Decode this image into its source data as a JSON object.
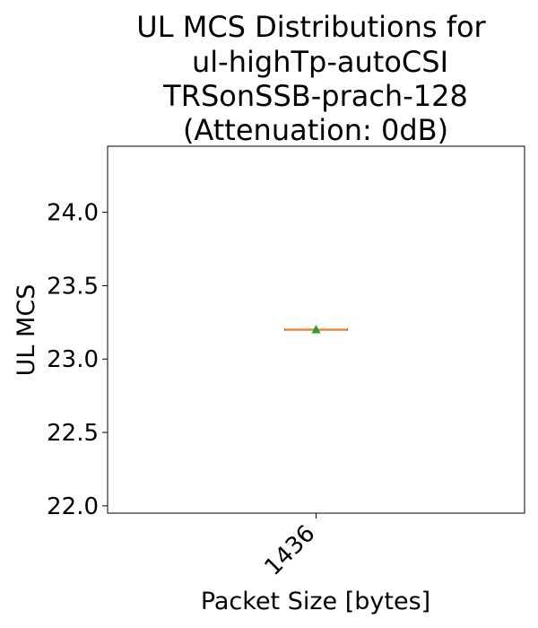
{
  "chart_data": {
    "type": "box",
    "title_lines": [
      "UL MCS Distributions for",
      "ul-highTp-autoCSI",
      "TRSonSSB-prach-128",
      "(Attenuation: 0dB)"
    ],
    "xlabel": "Packet Size [bytes]",
    "ylabel": "UL MCS",
    "categories": [
      "1436"
    ],
    "yticks": [
      "22.0",
      "22.5",
      "23.0",
      "23.5",
      "24.0"
    ],
    "ylim": [
      21.95,
      24.45
    ],
    "boxes": [
      {
        "category": "1436",
        "min": 23.2,
        "q1": 23.2,
        "median": 23.2,
        "q3": 23.2,
        "max": 23.2,
        "mean": 23.2
      }
    ],
    "colors": {
      "median": "#ff7f0e",
      "mean": "#2ca02c",
      "box": "#000000"
    },
    "grid": false
  }
}
